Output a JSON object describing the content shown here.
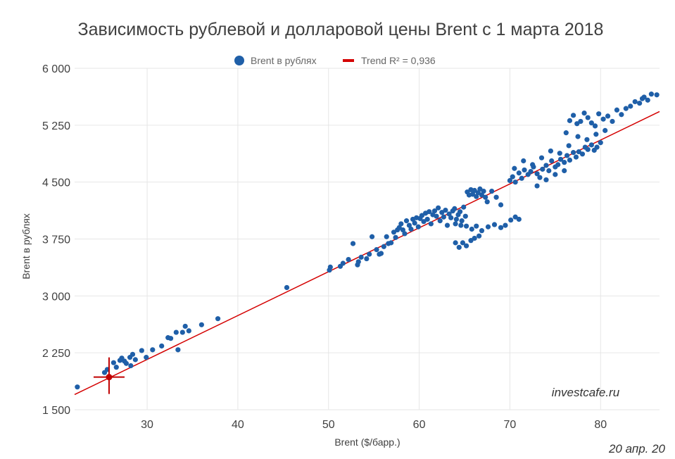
{
  "chart_data": {
    "type": "scatter",
    "title": "Зависимость рублевой и долларовой цены Brent с 1 марта 2018",
    "xlabel": "Brent ($/барр.)",
    "ylabel": "Brent в рублях",
    "xlim": [
      22,
      86.5
    ],
    "ylim": [
      1500,
      6000
    ],
    "x_ticks": [
      30,
      40,
      50,
      60,
      70,
      80
    ],
    "y_ticks": [
      1500,
      2250,
      3000,
      3750,
      4500,
      5250,
      6000
    ],
    "y_tick_labels": [
      "1 500",
      "2 250",
      "3 000",
      "3 750",
      "4 500",
      "5 250",
      "6 000"
    ],
    "grid": true,
    "legend_position": "top-center",
    "series": [
      {
        "name": "Brent в рублях",
        "color": "#1f5fa8",
        "points": [
          [
            22.3,
            1800
          ],
          [
            25.3,
            1990
          ],
          [
            25.6,
            2030
          ],
          [
            26.3,
            2120
          ],
          [
            26.6,
            2060
          ],
          [
            27.0,
            2150
          ],
          [
            27.2,
            2180
          ],
          [
            27.5,
            2140
          ],
          [
            27.7,
            2110
          ],
          [
            28.1,
            2190
          ],
          [
            28.4,
            2230
          ],
          [
            28.7,
            2160
          ],
          [
            28.2,
            2080
          ],
          [
            29.4,
            2280
          ],
          [
            29.9,
            2190
          ],
          [
            30.6,
            2290
          ],
          [
            31.6,
            2340
          ],
          [
            32.3,
            2450
          ],
          [
            32.6,
            2440
          ],
          [
            33.2,
            2520
          ],
          [
            33.4,
            2290
          ],
          [
            33.9,
            2520
          ],
          [
            34.2,
            2600
          ],
          [
            34.6,
            2540
          ],
          [
            36.0,
            2620
          ],
          [
            37.8,
            2700
          ],
          [
            45.4,
            3110
          ],
          [
            50.1,
            3340
          ],
          [
            50.2,
            3380
          ],
          [
            51.3,
            3390
          ],
          [
            51.6,
            3430
          ],
          [
            52.2,
            3480
          ],
          [
            52.7,
            3690
          ],
          [
            53.2,
            3410
          ],
          [
            53.3,
            3450
          ],
          [
            53.6,
            3510
          ],
          [
            54.2,
            3490
          ],
          [
            54.5,
            3550
          ],
          [
            54.8,
            3780
          ],
          [
            55.3,
            3610
          ],
          [
            55.6,
            3550
          ],
          [
            55.8,
            3560
          ],
          [
            56.1,
            3650
          ],
          [
            56.4,
            3780
          ],
          [
            56.6,
            3690
          ],
          [
            56.9,
            3700
          ],
          [
            57.2,
            3840
          ],
          [
            57.4,
            3770
          ],
          [
            57.6,
            3870
          ],
          [
            57.8,
            3900
          ],
          [
            58.0,
            3950
          ],
          [
            58.2,
            3870
          ],
          [
            58.4,
            3820
          ],
          [
            58.6,
            3990
          ],
          [
            58.9,
            3930
          ],
          [
            59.1,
            3880
          ],
          [
            59.3,
            4010
          ],
          [
            59.5,
            3960
          ],
          [
            59.7,
            4030
          ],
          [
            59.9,
            3910
          ],
          [
            60.1,
            4020
          ],
          [
            60.3,
            4060
          ],
          [
            60.5,
            3980
          ],
          [
            60.7,
            4090
          ],
          [
            60.9,
            4010
          ],
          [
            61.1,
            4110
          ],
          [
            61.3,
            3950
          ],
          [
            61.5,
            4070
          ],
          [
            61.7,
            4120
          ],
          [
            61.9,
            4050
          ],
          [
            62.1,
            4160
          ],
          [
            62.3,
            3990
          ],
          [
            62.5,
            4100
          ],
          [
            62.7,
            4040
          ],
          [
            62.9,
            4130
          ],
          [
            63.1,
            3930
          ],
          [
            63.3,
            4080
          ],
          [
            63.5,
            4030
          ],
          [
            63.7,
            4120
          ],
          [
            63.9,
            4150
          ],
          [
            64.1,
            4010
          ],
          [
            64.3,
            4070
          ],
          [
            64.5,
            4110
          ],
          [
            64.7,
            3990
          ],
          [
            64.9,
            4170
          ],
          [
            65.1,
            4050
          ],
          [
            65.3,
            4370
          ],
          [
            65.5,
            4330
          ],
          [
            65.7,
            4400
          ],
          [
            65.9,
            4340
          ],
          [
            66.1,
            4390
          ],
          [
            66.3,
            4310
          ],
          [
            66.5,
            4360
          ],
          [
            66.7,
            4410
          ],
          [
            66.9,
            4330
          ],
          [
            67.1,
            4380
          ],
          [
            67.3,
            4300
          ],
          [
            67.5,
            4240
          ],
          [
            68.0,
            4380
          ],
          [
            68.5,
            4300
          ],
          [
            69.0,
            4200
          ],
          [
            64.0,
            3950
          ],
          [
            64.6,
            3930
          ],
          [
            65.2,
            3920
          ],
          [
            65.8,
            3880
          ],
          [
            66.3,
            3920
          ],
          [
            66.9,
            3860
          ],
          [
            67.6,
            3910
          ],
          [
            68.3,
            3940
          ],
          [
            69.0,
            3900
          ],
          [
            69.5,
            3930
          ],
          [
            70.1,
            4000
          ],
          [
            70.6,
            4040
          ],
          [
            71.0,
            4010
          ],
          [
            64.0,
            3700
          ],
          [
            64.4,
            3640
          ],
          [
            64.8,
            3700
          ],
          [
            65.2,
            3660
          ],
          [
            65.7,
            3730
          ],
          [
            66.1,
            3760
          ],
          [
            66.6,
            3790
          ],
          [
            70.0,
            4520
          ],
          [
            70.3,
            4570
          ],
          [
            70.6,
            4500
          ],
          [
            71.0,
            4620
          ],
          [
            71.3,
            4550
          ],
          [
            71.6,
            4660
          ],
          [
            72.0,
            4600
          ],
          [
            72.3,
            4640
          ],
          [
            72.6,
            4700
          ],
          [
            73.0,
            4610
          ],
          [
            73.3,
            4560
          ],
          [
            73.6,
            4670
          ],
          [
            74.0,
            4720
          ],
          [
            74.3,
            4650
          ],
          [
            74.6,
            4780
          ],
          [
            75.0,
            4700
          ],
          [
            75.3,
            4730
          ],
          [
            75.6,
            4800
          ],
          [
            76.0,
            4760
          ],
          [
            76.3,
            4850
          ],
          [
            76.6,
            4790
          ],
          [
            77.0,
            4890
          ],
          [
            77.3,
            4830
          ],
          [
            77.6,
            4900
          ],
          [
            78.0,
            4870
          ],
          [
            78.3,
            4960
          ],
          [
            78.6,
            4930
          ],
          [
            79.0,
            4990
          ],
          [
            79.3,
            4920
          ],
          [
            79.6,
            4960
          ],
          [
            80.0,
            5020
          ],
          [
            70.5,
            4680
          ],
          [
            71.5,
            4780
          ],
          [
            72.5,
            4730
          ],
          [
            73.5,
            4820
          ],
          [
            74.5,
            4910
          ],
          [
            75.5,
            4880
          ],
          [
            76.5,
            4980
          ],
          [
            77.5,
            5100
          ],
          [
            78.5,
            5060
          ],
          [
            79.5,
            5130
          ],
          [
            80.5,
            5180
          ],
          [
            73.0,
            4450
          ],
          [
            74.0,
            4530
          ],
          [
            75.0,
            4600
          ],
          [
            76.0,
            4650
          ],
          [
            76.2,
            5150
          ],
          [
            76.6,
            5310
          ],
          [
            77.0,
            5380
          ],
          [
            77.4,
            5270
          ],
          [
            77.8,
            5300
          ],
          [
            78.2,
            5410
          ],
          [
            78.6,
            5350
          ],
          [
            79.0,
            5280
          ],
          [
            79.4,
            5240
          ],
          [
            79.8,
            5400
          ],
          [
            80.3,
            5330
          ],
          [
            80.8,
            5370
          ],
          [
            81.3,
            5300
          ],
          [
            81.8,
            5450
          ],
          [
            82.3,
            5390
          ],
          [
            82.8,
            5470
          ],
          [
            83.3,
            5500
          ],
          [
            83.8,
            5560
          ],
          [
            84.3,
            5540
          ],
          [
            84.8,
            5620
          ],
          [
            85.2,
            5580
          ],
          [
            85.6,
            5660
          ],
          [
            86.2,
            5650
          ],
          [
            84.6,
            5600
          ]
        ]
      },
      {
        "name": "Trend R² = 0,936",
        "color": "#d40000",
        "type": "line",
        "points": [
          [
            22.0,
            1700
          ],
          [
            86.5,
            5430
          ]
        ]
      }
    ],
    "annotations": [
      {
        "type": "highlight-point",
        "x": 25.8,
        "y": 1930,
        "color": "#c00000"
      }
    ]
  },
  "watermark": "investcafe.ru",
  "date_label": "20 апр. 20"
}
